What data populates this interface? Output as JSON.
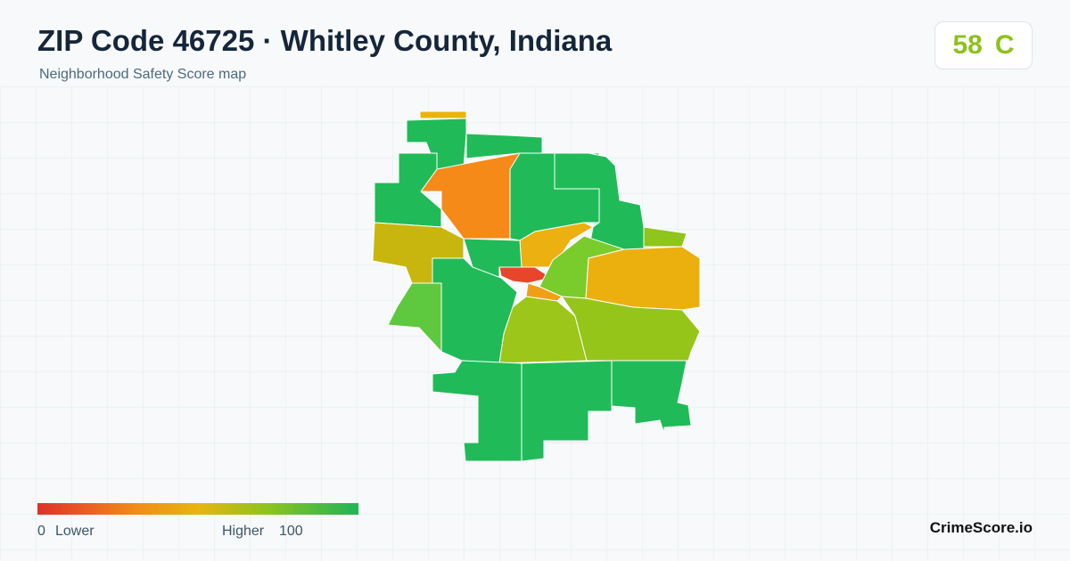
{
  "header": {
    "title": "ZIP Code 46725 · Whitley County, Indiana",
    "subtitle": "Neighborhood Safety Score map"
  },
  "score": {
    "value": "58",
    "grade": "C"
  },
  "legend": {
    "min": "0",
    "min_label": "Lower",
    "max_label": "Higher",
    "max": "100"
  },
  "brand": "CrimeScore.io"
}
